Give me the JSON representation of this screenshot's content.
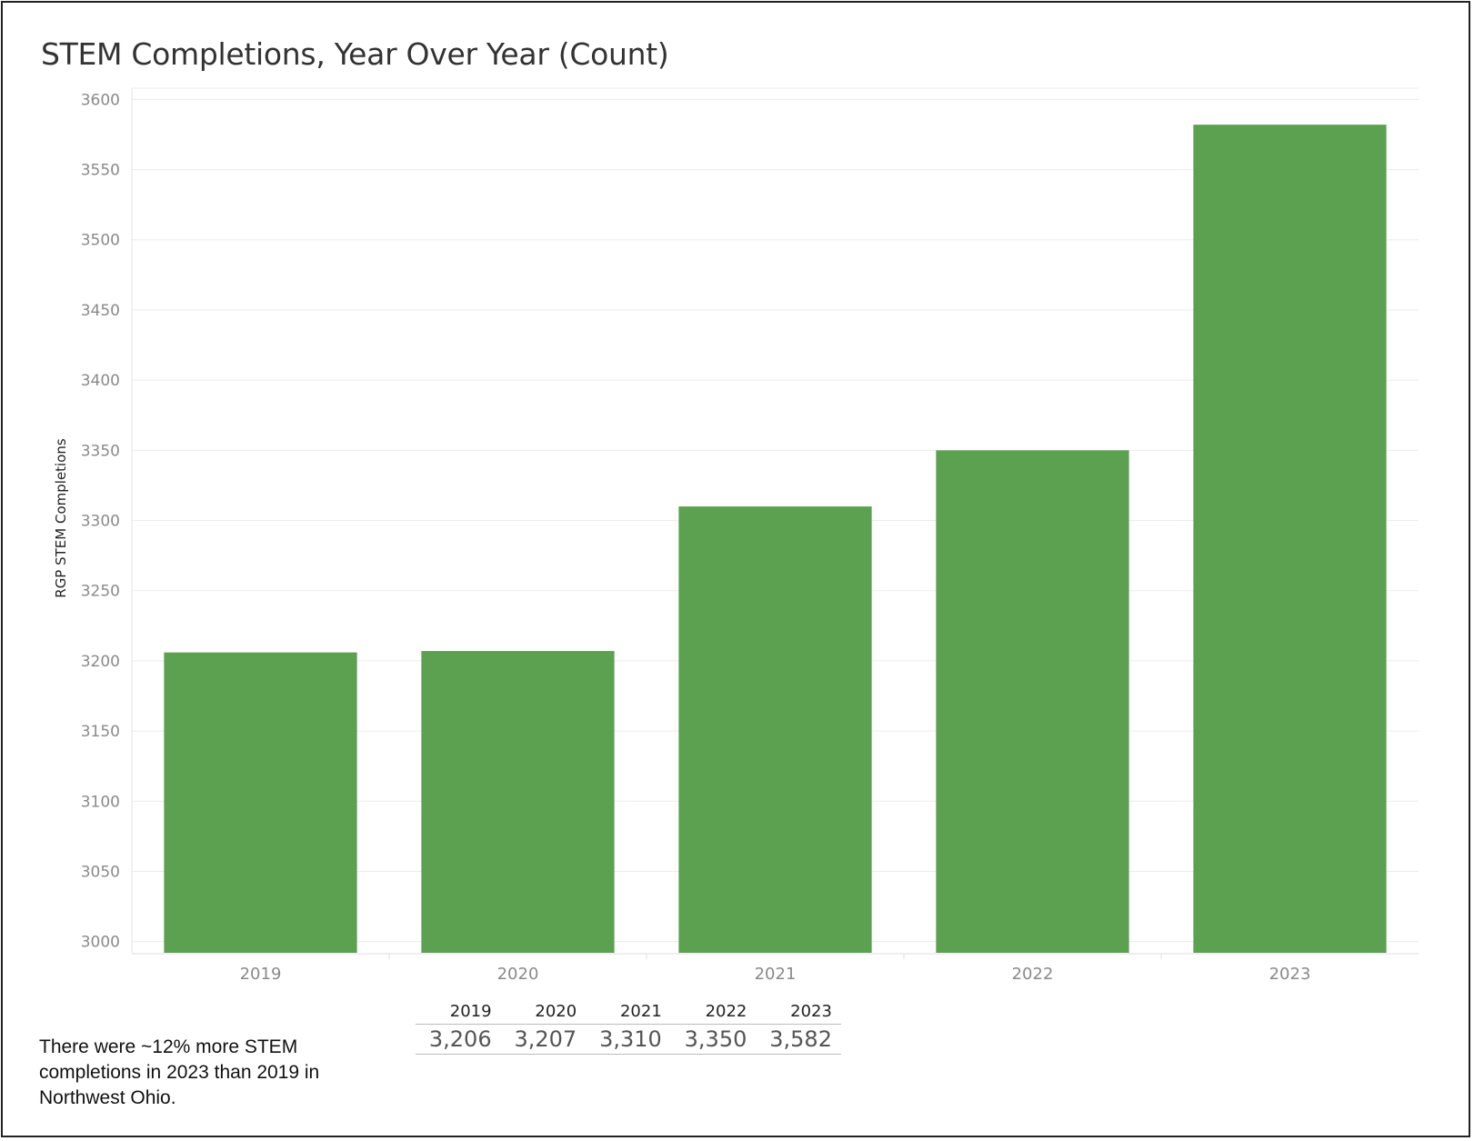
{
  "chart_data": {
    "type": "bar",
    "title": "STEM Completions, Year Over Year (Count)",
    "ylabel": "RGP STEM Completions",
    "xlabel": "",
    "categories": [
      "2019",
      "2020",
      "2021",
      "2022",
      "2023"
    ],
    "values": [
      3206,
      3207,
      3310,
      3350,
      3582
    ],
    "ylim": [
      2992,
      3608
    ],
    "yticks": [
      "3000",
      "3050",
      "3100",
      "3150",
      "3200",
      "3250",
      "3300",
      "3350",
      "3400",
      "3450",
      "3500",
      "3550",
      "3600"
    ],
    "grid": true,
    "bar_color": "#5ba150"
  },
  "table": {
    "headers": [
      "2019",
      "2020",
      "2021",
      "2022",
      "2023"
    ],
    "values": [
      "3,206",
      "3,207",
      "3,310",
      "3,350",
      "3,582"
    ]
  },
  "note": "There were ~12% more STEM completions in 2023 than 2019 in Northwest Ohio."
}
